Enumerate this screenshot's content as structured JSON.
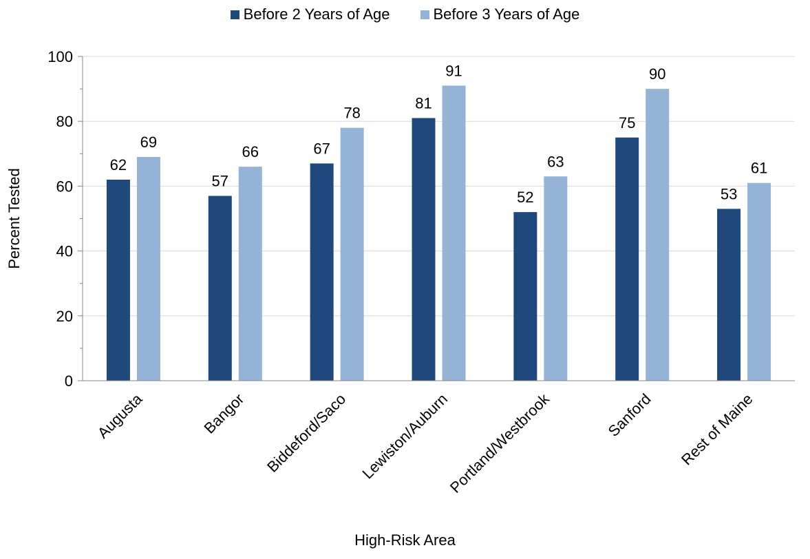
{
  "chart_data": {
    "type": "bar",
    "categories": [
      "Augusta",
      "Bangor",
      "Biddeford/Saco",
      "Lewiston/Auburn",
      "Portland/Westbrook",
      "Sanford",
      "Rest of Maine"
    ],
    "series": [
      {
        "name": "Before 2 Years of Age",
        "values": [
          62,
          57,
          67,
          81,
          52,
          75,
          53
        ],
        "color": "#1f497d"
      },
      {
        "name": "Before 3 Years of Age",
        "values": [
          69,
          66,
          78,
          91,
          63,
          90,
          61
        ],
        "color": "#95b3d7"
      }
    ],
    "xlabel": "High-Risk Area",
    "ylabel": "Percent Tested",
    "ylim": [
      0,
      100
    ],
    "yticks": [
      0,
      20,
      40,
      60,
      80,
      100
    ],
    "grid": true,
    "legend_position": "top-center"
  }
}
